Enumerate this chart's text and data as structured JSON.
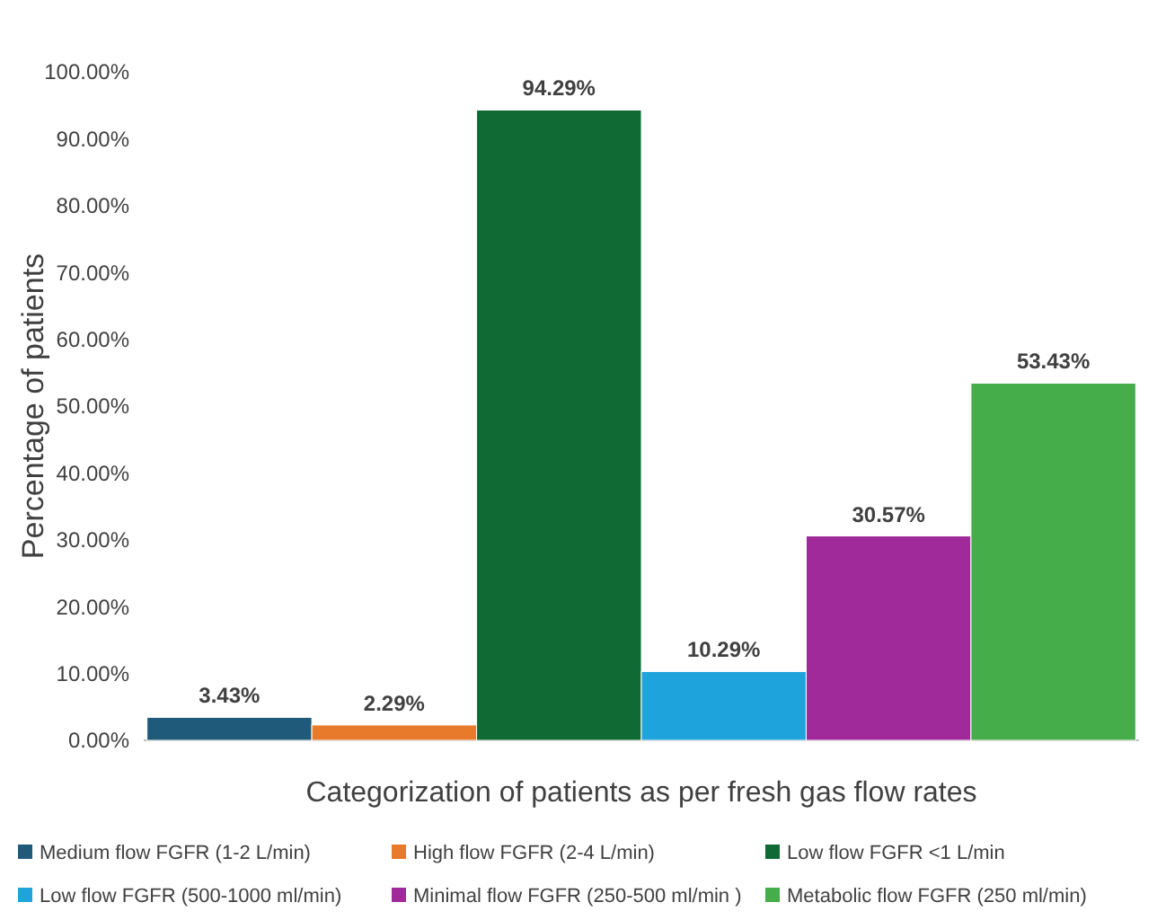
{
  "chart_data": {
    "type": "bar",
    "xlabel": "Categorization of patients as per fresh gas flow rates",
    "ylabel": "Percentage of patients",
    "categories": [
      null,
      null,
      null,
      null,
      null,
      null
    ],
    "series": [
      {
        "name": "Medium flow FGFR (1-2 L/min)",
        "color": "#1f5a7a",
        "values": [
          3.43,
          null,
          null,
          null,
          null,
          null
        ],
        "value_labels": [
          "3.43%",
          null,
          null,
          null,
          null,
          null
        ]
      },
      {
        "name": "High flow FGFR (2-4 L/min)",
        "color": "#e87a2c",
        "values": [
          null,
          2.29,
          null,
          null,
          null,
          null
        ],
        "value_labels": [
          null,
          "2.29%",
          null,
          null,
          null,
          null
        ]
      },
      {
        "name": "Low flow FGFR <1 L/min",
        "color": "#0f6b33",
        "values": [
          null,
          null,
          94.29,
          null,
          null,
          null
        ],
        "value_labels": [
          null,
          null,
          "94.29%",
          null,
          null,
          null
        ]
      },
      {
        "name": "Low flow FGFR (500-1000 ml/min)",
        "color": "#1fa3dc",
        "values": [
          null,
          null,
          null,
          10.29,
          null,
          null
        ],
        "value_labels": [
          null,
          null,
          null,
          "10.29%",
          null,
          null
        ]
      },
      {
        "name": "Minimal flow FGFR (250-500 ml/min )",
        "color": "#a02a9a",
        "values": [
          null,
          null,
          null,
          null,
          30.57,
          null
        ],
        "value_labels": [
          null,
          null,
          null,
          null,
          "30.57%",
          null
        ]
      },
      {
        "name": "Metabolic flow FGFR (250 ml/min)",
        "color": "#45ad4a",
        "values": [
          null,
          null,
          null,
          null,
          null,
          53.43
        ],
        "value_labels": [
          null,
          null,
          null,
          null,
          null,
          "53.43%"
        ]
      }
    ],
    "ylim": [
      0,
      100
    ],
    "yticks": [
      {
        "value": 0,
        "label": "0.00%"
      },
      {
        "value": 10,
        "label": "10.00%"
      },
      {
        "value": 20,
        "label": "20.00%"
      },
      {
        "value": 30,
        "label": "30.00%"
      },
      {
        "value": 40,
        "label": "40.00%"
      },
      {
        "value": 50,
        "label": "50.00%"
      },
      {
        "value": 60,
        "label": "60.00%"
      },
      {
        "value": 70,
        "label": "70.00%"
      },
      {
        "value": 80,
        "label": "80.00%"
      },
      {
        "value": 90,
        "label": "90.00%"
      },
      {
        "value": 100,
        "label": "100.00%"
      }
    ],
    "grid": false,
    "legend": "bottom"
  }
}
